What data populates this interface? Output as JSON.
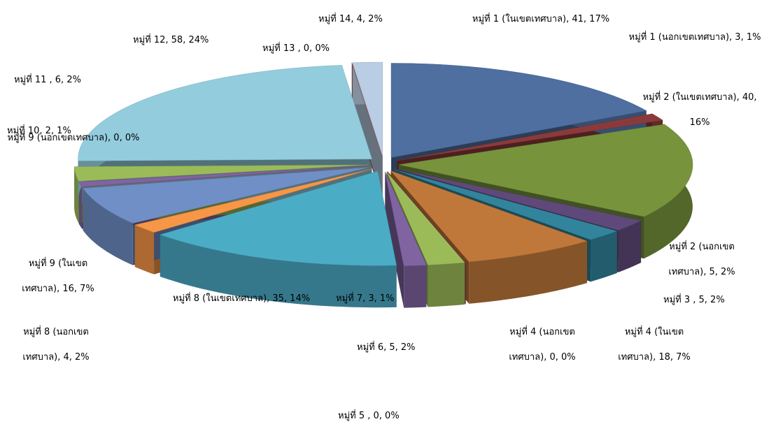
{
  "chart_data": {
    "type": "pie3d",
    "categories": [
      "หมู่ที่ 1 (ในเขตเทศบาล), 41, 17%",
      "หมู่ที่ 1 (นอกเขตเทศบาล), 3, 1%",
      "หมู่ที่ 2 (ในเขตเทศบาล), 40, 16%",
      "หมู่ที่ 2 (นอกเขต เทศบาล), 5, 2%",
      "หมู่ที่ 3 , 5, 2%",
      "หมู่ที่ 4 (ในเขต เทศบาล), 18, 7%",
      "หมู่ที่ 4 (นอกเขต เทศบาล), 0, 0%",
      "หมู่ที่ 5 , 0, 0%",
      "หมู่ที่ 6, 5, 2%",
      "หมู่ที่ 7, 3, 1%",
      "หมู่ที่ 8 (ในเขตเทศบาล), 35, 14%",
      "หมู่ที่ 8 (นอกเขต เทศบาล), 4, 2%",
      "หมู่ที่ 9 (ในเขต เทศบาล), 16, 7%",
      "หมู่ที่ 9 (นอกเขตเทศบาล), 0, 0%",
      "หมู่ที่ 10, 2, 1%",
      "หมู่ที่ 11 , 6, 2%",
      "หมู่ที่ 12, 58, 24%",
      "หมู่ที่ 13 , 0, 0%",
      "หมู่ที่ 14, 4, 2%"
    ],
    "values": [
      41,
      3,
      40,
      5,
      5,
      18,
      0,
      0,
      5,
      3,
      35,
      4,
      16,
      0,
      2,
      6,
      58,
      0,
      4
    ],
    "colors": [
      "#4f6fa0",
      "#8b3a3a",
      "#77933c",
      "#5f497a",
      "#31849b",
      "#c0783a",
      "#b5514d",
      "#a04040",
      "#9bbb59",
      "#8064a2",
      "#4bacc6",
      "#f79646",
      "#6f8fc6",
      "#c0504d",
      "#8064a2",
      "#9bbb59",
      "#93cddd",
      "#c0504d",
      "#b9cde5"
    ]
  }
}
